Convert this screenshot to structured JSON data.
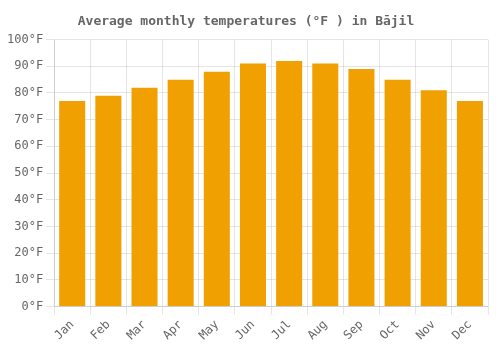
{
  "chart_data": {
    "type": "bar",
    "title": "Average monthly temperatures (°F ) in Bājil",
    "categories": [
      "Jan",
      "Feb",
      "Mar",
      "Apr",
      "May",
      "Jun",
      "Jul",
      "Aug",
      "Sep",
      "Oct",
      "Nov",
      "Dec"
    ],
    "values": [
      77,
      79,
      82,
      85,
      88,
      91,
      92,
      91,
      89,
      85,
      81,
      77
    ],
    "color": "#F0A000",
    "ylim": [
      0,
      100
    ],
    "yticks": [
      {
        "value": 0,
        "label": "0°F"
      },
      {
        "value": 10,
        "label": "10°F"
      },
      {
        "value": 20,
        "label": "20°F"
      },
      {
        "value": 30,
        "label": "30°F"
      },
      {
        "value": 40,
        "label": "40°F"
      },
      {
        "value": 50,
        "label": "50°F"
      },
      {
        "value": 60,
        "label": "60°F"
      },
      {
        "value": 70,
        "label": "70°F"
      },
      {
        "value": 80,
        "label": "80°F"
      },
      {
        "value": 90,
        "label": "90°F"
      },
      {
        "value": 100,
        "label": "100°F"
      }
    ],
    "grid": true
  }
}
